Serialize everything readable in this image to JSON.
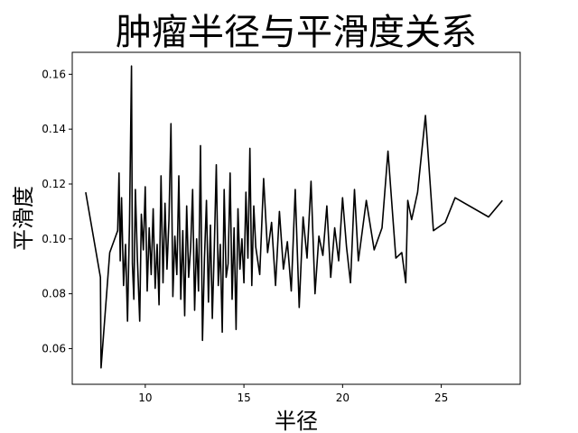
{
  "chart_data": {
    "type": "line",
    "title": "肿瘤半径与平滑度关系",
    "xlabel": "半径",
    "ylabel": "平滑度",
    "xlim": [
      6.3,
      29.0
    ],
    "ylim": [
      0.047,
      0.168
    ],
    "xticks": [
      10,
      15,
      20,
      25
    ],
    "yticks": [
      0.06,
      0.08,
      0.1,
      0.12,
      0.14,
      0.16
    ],
    "xtick_labels": [
      "10",
      "15",
      "20",
      "25"
    ],
    "ytick_labels": [
      "0.06",
      "0.08",
      "0.10",
      "0.12",
      "0.14",
      "0.16"
    ],
    "grid": false,
    "legend": "none",
    "line_color": "#000000",
    "series": [
      {
        "x": [
          6.98,
          7.73,
          7.76,
          8.2,
          8.6,
          8.67,
          8.73,
          8.8,
          8.9,
          9.0,
          9.1,
          9.2,
          9.3,
          9.35,
          9.42,
          9.5,
          9.6,
          9.72,
          9.8,
          9.9,
          10.0,
          10.1,
          10.2,
          10.3,
          10.4,
          10.5,
          10.6,
          10.7,
          10.8,
          10.9,
          11.0,
          11.1,
          11.2,
          11.3,
          11.4,
          11.5,
          11.6,
          11.7,
          11.8,
          11.9,
          12.0,
          12.1,
          12.2,
          12.3,
          12.4,
          12.5,
          12.6,
          12.7,
          12.8,
          12.9,
          13.0,
          13.1,
          13.2,
          13.3,
          13.4,
          13.5,
          13.6,
          13.7,
          13.8,
          13.9,
          14.0,
          14.1,
          14.2,
          14.3,
          14.4,
          14.5,
          14.6,
          14.7,
          14.8,
          14.9,
          15.0,
          15.1,
          15.2,
          15.3,
          15.4,
          15.5,
          15.6,
          15.8,
          16.0,
          16.2,
          16.4,
          16.6,
          16.8,
          17.0,
          17.2,
          17.4,
          17.6,
          17.8,
          18.0,
          18.2,
          18.4,
          18.6,
          18.8,
          19.0,
          19.2,
          19.4,
          19.6,
          19.8,
          20.0,
          20.2,
          20.4,
          20.6,
          20.8,
          21.0,
          21.2,
          21.6,
          22.0,
          22.3,
          22.7,
          23.0,
          23.2,
          23.3,
          23.5,
          23.8,
          24.2,
          24.6,
          25.2,
          25.7,
          27.4,
          28.1
        ],
        "y": [
          0.117,
          0.086,
          0.053,
          0.095,
          0.103,
          0.124,
          0.092,
          0.115,
          0.083,
          0.098,
          0.07,
          0.106,
          0.163,
          0.091,
          0.078,
          0.118,
          0.093,
          0.07,
          0.109,
          0.096,
          0.119,
          0.081,
          0.104,
          0.087,
          0.111,
          0.082,
          0.098,
          0.076,
          0.123,
          0.084,
          0.113,
          0.089,
          0.107,
          0.142,
          0.079,
          0.101,
          0.087,
          0.123,
          0.078,
          0.103,
          0.072,
          0.112,
          0.086,
          0.097,
          0.118,
          0.074,
          0.1,
          0.081,
          0.134,
          0.063,
          0.093,
          0.114,
          0.077,
          0.105,
          0.071,
          0.097,
          0.127,
          0.083,
          0.098,
          0.066,
          0.118,
          0.086,
          0.091,
          0.124,
          0.078,
          0.104,
          0.067,
          0.111,
          0.089,
          0.1,
          0.084,
          0.117,
          0.093,
          0.133,
          0.083,
          0.112,
          0.097,
          0.087,
          0.122,
          0.095,
          0.106,
          0.083,
          0.11,
          0.089,
          0.099,
          0.081,
          0.118,
          0.075,
          0.108,
          0.093,
          0.121,
          0.08,
          0.101,
          0.094,
          0.112,
          0.086,
          0.104,
          0.092,
          0.115,
          0.097,
          0.084,
          0.118,
          0.092,
          0.103,
          0.114,
          0.096,
          0.104,
          0.132,
          0.093,
          0.095,
          0.084,
          0.114,
          0.107,
          0.117,
          0.145,
          0.103,
          0.106,
          0.115,
          0.108,
          0.114
        ]
      }
    ]
  }
}
